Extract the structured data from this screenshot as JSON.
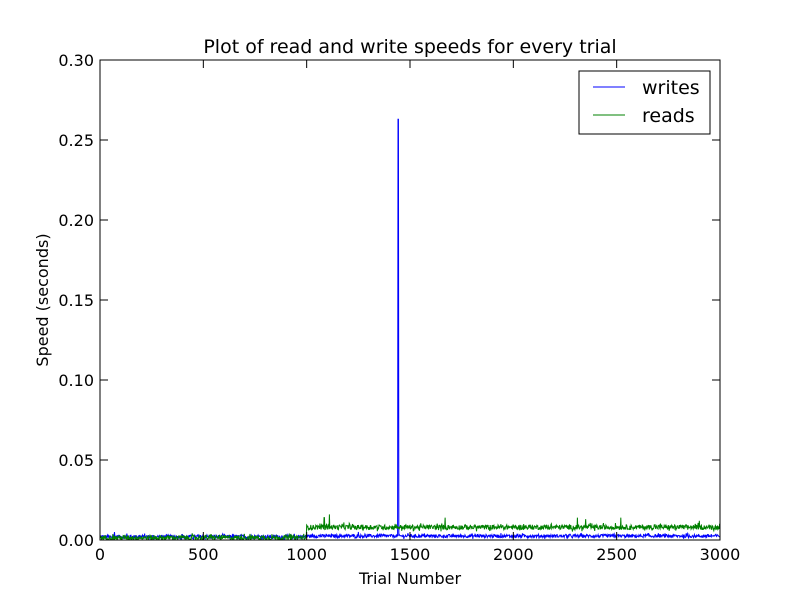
{
  "chart_data": {
    "type": "line",
    "title": "Plot of read and write speeds for every trial",
    "xlabel": "Trial Number",
    "ylabel": "Speed (seconds)",
    "xlim": [
      0,
      3000
    ],
    "ylim": [
      0.0,
      0.3
    ],
    "xticks": [
      0,
      500,
      1000,
      1500,
      2000,
      2500,
      3000
    ],
    "xtick_labels": [
      "0",
      "500",
      "1000",
      "1500",
      "2000",
      "2500",
      "3000"
    ],
    "yticks": [
      0.0,
      0.05,
      0.1,
      0.15,
      0.2,
      0.25,
      0.3
    ],
    "ytick_labels": [
      "0.00",
      "0.05",
      "0.10",
      "0.15",
      "0.20",
      "0.25",
      "0.30"
    ],
    "grid": false,
    "legend_position": "top-right",
    "series": [
      {
        "name": "writes",
        "color": "#0000ff",
        "segments": [
          {
            "x_start": 0,
            "x_end": 1000,
            "baseline": 0.002,
            "noise": 0.0012
          },
          {
            "x_start": 1000,
            "x_end": 3000,
            "baseline": 0.0025,
            "noise": 0.001
          }
        ],
        "spikes": [
          {
            "x": 1443,
            "y": 0.263
          },
          {
            "x": 70,
            "y": 0.005
          },
          {
            "x": 130,
            "y": 0.004
          },
          {
            "x": 1250,
            "y": 0.005
          }
        ]
      },
      {
        "name": "reads",
        "color": "#008000",
        "segments": [
          {
            "x_start": 0,
            "x_end": 1000,
            "baseline": 0.0015,
            "noise": 0.0015
          },
          {
            "x_start": 1000,
            "x_end": 3000,
            "baseline": 0.008,
            "noise": 0.0015
          }
        ],
        "spikes": [
          {
            "x": 1085,
            "y": 0.014
          },
          {
            "x": 1110,
            "y": 0.016
          },
          {
            "x": 1180,
            "y": 0.011
          },
          {
            "x": 1670,
            "y": 0.014
          },
          {
            "x": 2310,
            "y": 0.014
          },
          {
            "x": 2350,
            "y": 0.013
          },
          {
            "x": 2520,
            "y": 0.014
          },
          {
            "x": 2900,
            "y": 0.012
          }
        ]
      }
    ]
  }
}
